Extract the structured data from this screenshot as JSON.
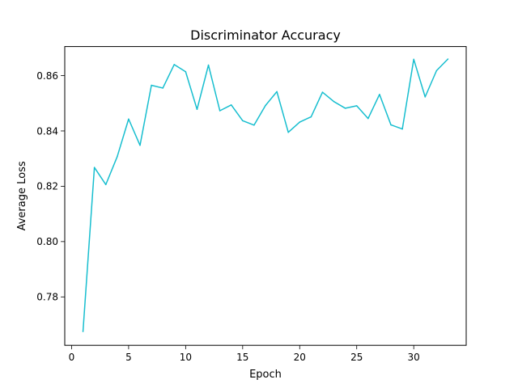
{
  "chart_data": {
    "type": "line",
    "title": "Discriminator Accuracy",
    "xlabel": "Epoch",
    "ylabel": "Average Loss",
    "xlim": [
      -0.6,
      34.6
    ],
    "ylim": [
      0.7625,
      0.8705
    ],
    "xticks": [
      0,
      5,
      10,
      15,
      20,
      25,
      30
    ],
    "xtick_labels": [
      "0",
      "5",
      "10",
      "15",
      "20",
      "25",
      "30"
    ],
    "yticks": [
      0.78,
      0.8,
      0.82,
      0.84,
      0.86
    ],
    "ytick_labels": [
      "0.78",
      "0.80",
      "0.82",
      "0.84",
      "0.86"
    ],
    "grid": false,
    "series": [
      {
        "color": "#17becf",
        "x": [
          1,
          2,
          3,
          4,
          5,
          6,
          7,
          8,
          9,
          10,
          11,
          12,
          13,
          14,
          15,
          16,
          17,
          18,
          19,
          20,
          21,
          22,
          23,
          24,
          25,
          26,
          27,
          28,
          29,
          30,
          31,
          32,
          33
        ],
        "y": [
          0.7675,
          0.8268,
          0.8206,
          0.8307,
          0.8443,
          0.8348,
          0.8565,
          0.8555,
          0.864,
          0.8614,
          0.8478,
          0.8638,
          0.8473,
          0.8494,
          0.8437,
          0.8421,
          0.8492,
          0.8542,
          0.8395,
          0.8432,
          0.8451,
          0.854,
          0.8506,
          0.8482,
          0.8491,
          0.8445,
          0.8532,
          0.8422,
          0.8407,
          0.8659,
          0.8523,
          0.8618,
          0.866
        ]
      }
    ]
  }
}
